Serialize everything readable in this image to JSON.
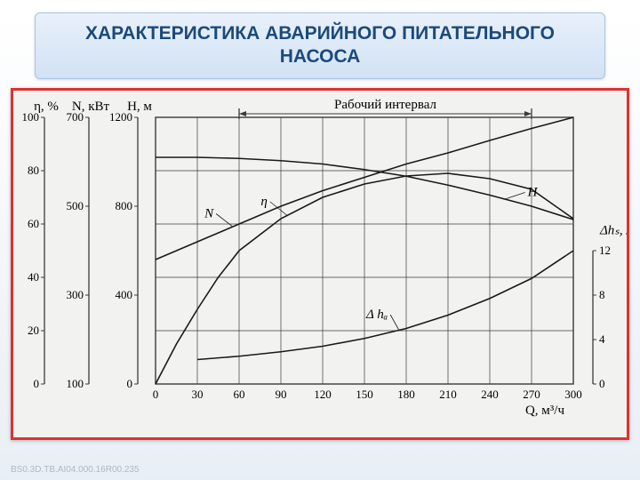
{
  "title": "ХАРАКТЕРИСТИКА АВАРИЙНОГО ПИТАТЕЛЬНОГО НАСОСА",
  "footer_code": "BS0.3D.TB.AI04.000.16R00.235",
  "colors": {
    "bg_gradient_top": "#ffffff",
    "bg_gradient_bot": "#e8eef5",
    "title_text": "#1b4a7a",
    "title_bg_top": "#e8f0fa",
    "title_bg_bot": "#d2e2f4",
    "frame_border": "#e03030",
    "chart_bg": "#f2f2f0",
    "grid": "#3a3a3a",
    "curve": "#1a1a1a",
    "axis_text": "#000000"
  },
  "chart": {
    "x_axis": {
      "label": "Q, м³/ч",
      "min": 0,
      "max": 300,
      "step": 30,
      "ticks": [
        0,
        30,
        60,
        90,
        120,
        150,
        180,
        210,
        240,
        270,
        300
      ]
    },
    "left_axes": [
      {
        "label": "η, %",
        "min": 0,
        "max": 100,
        "ticks": [
          0,
          20,
          40,
          60,
          80,
          100
        ]
      },
      {
        "label": "N, кВт",
        "min": 100,
        "max": 700,
        "ticks": [
          100,
          300,
          500,
          700
        ]
      },
      {
        "label": "H, м",
        "min": 0,
        "max": 1200,
        "ticks": [
          0,
          400,
          800,
          1200
        ]
      }
    ],
    "right_axis": {
      "label": "Δhₛ, м",
      "min": 0,
      "max": 12,
      "ticks": [
        0,
        4,
        8,
        12
      ]
    },
    "range_label": "Рабочий интервал",
    "range_x": [
      60,
      270
    ],
    "curve_labels": {
      "N": "N",
      "H": "H",
      "eta": "η",
      "dh": "Δ hₐ"
    },
    "curves": {
      "H_vs_H": [
        [
          0,
          1020
        ],
        [
          30,
          1020
        ],
        [
          60,
          1015
        ],
        [
          90,
          1005
        ],
        [
          120,
          990
        ],
        [
          150,
          965
        ],
        [
          180,
          935
        ],
        [
          210,
          895
        ],
        [
          240,
          850
        ],
        [
          270,
          800
        ],
        [
          300,
          740
        ]
      ],
      "N_vs_N": [
        [
          0,
          380
        ],
        [
          30,
          420
        ],
        [
          60,
          460
        ],
        [
          90,
          500
        ],
        [
          120,
          535
        ],
        [
          150,
          565
        ],
        [
          180,
          595
        ],
        [
          210,
          620
        ],
        [
          240,
          648
        ],
        [
          270,
          675
        ],
        [
          300,
          700
        ]
      ],
      "eta_vs_eta": [
        [
          0,
          0
        ],
        [
          15,
          15
        ],
        [
          30,
          28
        ],
        [
          45,
          40
        ],
        [
          60,
          50
        ],
        [
          90,
          62
        ],
        [
          120,
          70
        ],
        [
          150,
          75
        ],
        [
          180,
          78
        ],
        [
          210,
          79
        ],
        [
          240,
          77
        ],
        [
          270,
          73
        ],
        [
          300,
          62
        ]
      ],
      "dh_vs_dh": [
        [
          30,
          2.2
        ],
        [
          60,
          2.5
        ],
        [
          90,
          2.9
        ],
        [
          120,
          3.4
        ],
        [
          150,
          4.1
        ],
        [
          180,
          5.0
        ],
        [
          210,
          6.2
        ],
        [
          240,
          7.7
        ],
        [
          270,
          9.5
        ],
        [
          300,
          12.0
        ]
      ]
    },
    "line_width": 1.6,
    "font_family": "Times New Roman, serif",
    "tick_fontsize": 13,
    "label_fontsize": 15
  }
}
